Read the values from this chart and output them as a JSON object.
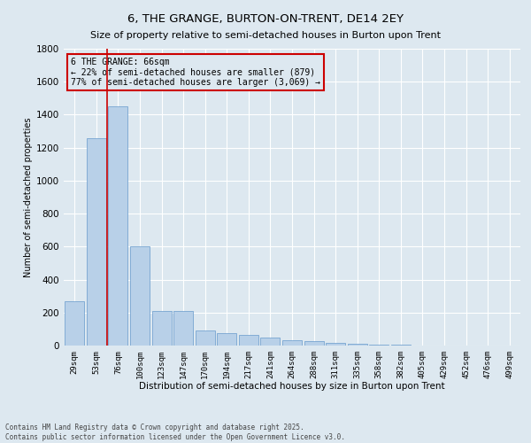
{
  "title": "6, THE GRANGE, BURTON-ON-TRENT, DE14 2EY",
  "subtitle": "Size of property relative to semi-detached houses in Burton upon Trent",
  "xlabel": "Distribution of semi-detached houses by size in Burton upon Trent",
  "ylabel": "Number of semi-detached properties",
  "bar_color": "#b8d0e8",
  "bar_edge_color": "#6699cc",
  "background_color": "#dde8f0",
  "grid_color": "#ffffff",
  "categories": [
    "29sqm",
    "53sqm",
    "76sqm",
    "100sqm",
    "123sqm",
    "147sqm",
    "170sqm",
    "194sqm",
    "217sqm",
    "241sqm",
    "264sqm",
    "288sqm",
    "311sqm",
    "335sqm",
    "358sqm",
    "382sqm",
    "405sqm",
    "429sqm",
    "452sqm",
    "476sqm",
    "499sqm"
  ],
  "values": [
    270,
    1260,
    1450,
    600,
    210,
    210,
    90,
    75,
    65,
    50,
    30,
    25,
    15,
    10,
    5,
    3,
    2,
    2,
    1,
    1,
    1
  ],
  "ylim": [
    0,
    1800
  ],
  "yticks": [
    0,
    200,
    400,
    600,
    800,
    1000,
    1200,
    1400,
    1600,
    1800
  ],
  "vline_x_index": 1.5,
  "vline_color": "#cc0000",
  "annotation_title": "6 THE GRANGE: 66sqm",
  "annotation_line1": "← 22% of semi-detached houses are smaller (879)",
  "annotation_line2": "77% of semi-detached houses are larger (3,069) →",
  "annotation_box_edge_color": "#cc0000",
  "footer_line1": "Contains HM Land Registry data © Crown copyright and database right 2025.",
  "footer_line2": "Contains public sector information licensed under the Open Government Licence v3.0."
}
